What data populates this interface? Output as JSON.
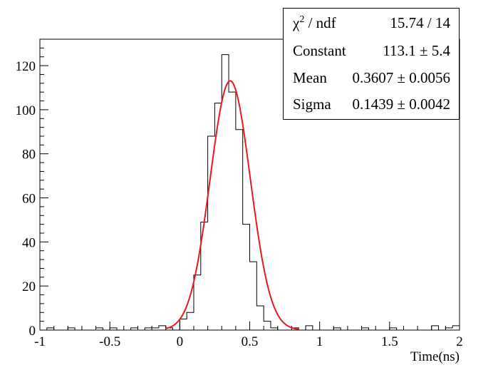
{
  "chart_data": {
    "type": "histogram",
    "xlabel": "Time(ns)",
    "ylabel": "",
    "xlim": [
      -1,
      2
    ],
    "ylim": [
      0,
      132
    ],
    "x_ticks": [
      "-1",
      "-0.5",
      "0",
      "0.5",
      "1",
      "1.5",
      "2"
    ],
    "y_ticks": [
      "0",
      "20",
      "40",
      "60",
      "80",
      "100",
      "120"
    ],
    "bin_width": 0.05,
    "bin_low_edges": [
      -1.0,
      -0.95,
      -0.9,
      -0.85,
      -0.8,
      -0.75,
      -0.7,
      -0.65,
      -0.6,
      -0.55,
      -0.5,
      -0.45,
      -0.4,
      -0.35,
      -0.3,
      -0.25,
      -0.2,
      -0.15,
      -0.1,
      -0.05,
      0.0,
      0.05,
      0.1,
      0.15,
      0.2,
      0.25,
      0.3,
      0.35,
      0.4,
      0.45,
      0.5,
      0.55,
      0.6,
      0.65,
      0.7,
      0.75,
      0.8,
      0.85,
      0.9,
      0.95,
      1.0,
      1.05,
      1.1,
      1.15,
      1.2,
      1.25,
      1.3,
      1.35,
      1.4,
      1.45,
      1.5,
      1.55,
      1.6,
      1.65,
      1.7,
      1.75,
      1.8,
      1.85,
      1.9,
      1.95
    ],
    "counts": [
      0,
      1,
      0,
      0,
      1,
      0,
      0,
      0,
      1,
      0,
      1,
      0,
      0,
      1,
      0,
      1,
      1,
      2,
      1,
      0,
      5,
      8,
      25,
      49,
      88,
      103,
      125,
      108,
      91,
      48,
      31,
      11,
      4,
      1,
      0,
      0,
      1,
      0,
      2,
      0,
      0,
      0,
      1,
      0,
      0,
      0,
      1,
      0,
      0,
      0,
      1,
      0,
      0,
      0,
      0,
      0,
      2,
      0,
      1,
      2
    ],
    "fit": {
      "function": "gaus",
      "color": "#e8191c",
      "constant": 113.1,
      "mean": 0.3607,
      "sigma": 0.1439,
      "x_range": [
        -0.1,
        0.85
      ]
    }
  },
  "stats": {
    "rows": [
      {
        "name": "χ",
        "sup": "2",
        "name_suffix": " / ndf",
        "value": "15.74 / 14"
      },
      {
        "name": "Constant",
        "sup": "",
        "name_suffix": "",
        "value": "113.1 ± 5.4"
      },
      {
        "name": "Mean",
        "sup": "",
        "name_suffix": "",
        "value": "0.3607 ± 0.0056"
      },
      {
        "name": "Sigma",
        "sup": "",
        "name_suffix": "",
        "value": "0.1439 ± 0.0042"
      }
    ]
  }
}
